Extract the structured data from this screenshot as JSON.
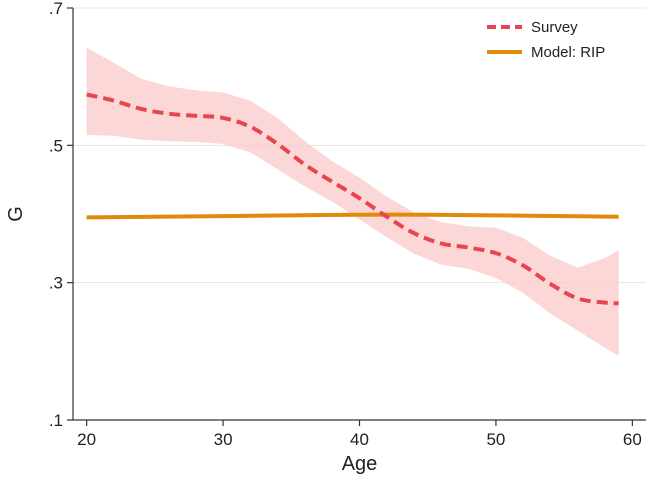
{
  "chart_data": {
    "type": "line",
    "xlabel": "Age",
    "ylabel": "G",
    "xlim": [
      19,
      61
    ],
    "ylim": [
      0.1,
      0.7
    ],
    "x_ticks": [
      20,
      30,
      40,
      50,
      60
    ],
    "x_tick_labels": [
      "20",
      "30",
      "40",
      "50",
      "60"
    ],
    "y_ticks": [
      0.1,
      0.3,
      0.5,
      0.7
    ],
    "y_tick_labels": [
      ".1",
      ".3",
      ".5",
      ".7"
    ],
    "grid": "horizontal",
    "legend_position": "top-right",
    "series": [
      {
        "name": "Survey",
        "style": "dashed",
        "color": "#e8454f",
        "band_color": "#f9c9c9",
        "x": [
          20,
          22,
          24,
          26,
          28,
          30,
          32,
          34,
          36,
          38,
          40,
          42,
          44,
          46,
          48,
          50,
          52,
          54,
          56,
          58,
          59
        ],
        "y": [
          0.574,
          0.565,
          0.553,
          0.546,
          0.543,
          0.54,
          0.527,
          0.502,
          0.472,
          0.447,
          0.423,
          0.396,
          0.372,
          0.357,
          0.351,
          0.343,
          0.325,
          0.298,
          0.277,
          0.271,
          0.27
        ],
        "lower": [
          0.515,
          0.514,
          0.508,
          0.506,
          0.505,
          0.502,
          0.49,
          0.465,
          0.44,
          0.418,
          0.392,
          0.366,
          0.342,
          0.326,
          0.32,
          0.307,
          0.285,
          0.255,
          0.23,
          0.205,
          0.193
        ],
        "upper": [
          0.642,
          0.62,
          0.597,
          0.586,
          0.58,
          0.577,
          0.565,
          0.54,
          0.506,
          0.477,
          0.453,
          0.425,
          0.402,
          0.388,
          0.382,
          0.38,
          0.365,
          0.339,
          0.322,
          0.336,
          0.347
        ]
      },
      {
        "name": "Model: RIP",
        "style": "solid",
        "color": "#e08a0b",
        "x": [
          20,
          25,
          30,
          35,
          40,
          45,
          50,
          55,
          59
        ],
        "y": [
          0.395,
          0.396,
          0.397,
          0.398,
          0.399,
          0.399,
          0.398,
          0.397,
          0.396
        ]
      }
    ]
  }
}
